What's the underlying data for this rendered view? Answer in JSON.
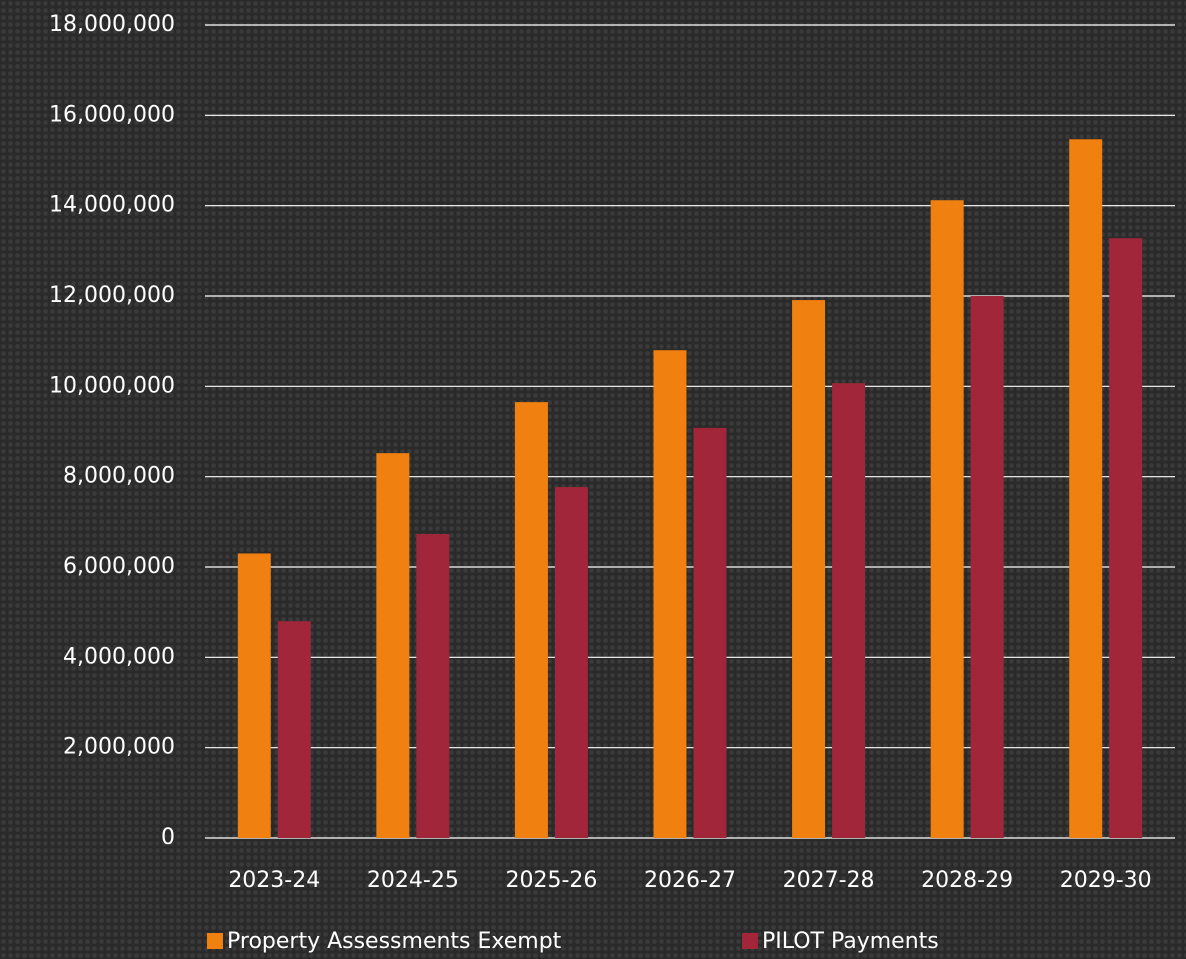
{
  "chart_data": {
    "type": "bar",
    "categories": [
      "2023-24",
      "2024-25",
      "2025-26",
      "2026-27",
      "2027-28",
      "2028-29",
      "2029-30"
    ],
    "series": [
      {
        "name": "Property Assessments Exempt",
        "color": "#f0800f",
        "values": [
          6300000,
          8520000,
          9650000,
          10800000,
          11910000,
          14120000,
          15470000
        ]
      },
      {
        "name": "PILOT Payments",
        "color": "#a12639",
        "values": [
          4800000,
          6730000,
          7770000,
          9080000,
          10070000,
          12000000,
          13280000
        ]
      }
    ],
    "ylim": [
      0,
      18000000
    ],
    "yticks": [
      0,
      {
        "value": 2000000,
        "label": "2,000,000"
      },
      {
        "value": 4000000,
        "label": "4,000,000"
      },
      {
        "value": 6000000,
        "label": "6,000,000"
      },
      {
        "value": 8000000,
        "label": "8,000,000"
      },
      {
        "value": 10000000,
        "label": "10,000,000"
      },
      {
        "value": 12000000,
        "label": "12,000,000"
      },
      {
        "value": 14000000,
        "label": "14,000,000"
      },
      {
        "value": 16000000,
        "label": "16,000,000"
      },
      {
        "value": 18000000,
        "label": "18,000,000"
      }
    ],
    "grid": true,
    "legend": "bottom"
  }
}
